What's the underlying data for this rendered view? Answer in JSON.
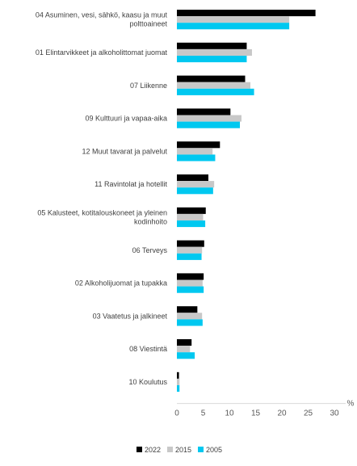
{
  "chart_data": {
    "type": "bar",
    "orientation": "horizontal",
    "categories": [
      [
        "04 Asuminen, vesi, sähkö, kaasu ja muut",
        "polttoaineet"
      ],
      [
        "01 Elintarvikkeet ja alkoholittomat juomat"
      ],
      [
        "07 Liikenne"
      ],
      [
        "09 Kulttuuri ja vapaa-aika"
      ],
      [
        "12 Muut tavarat ja palvelut"
      ],
      [
        "11 Ravintolat ja hotellit"
      ],
      [
        "05 Kalusteet, kotitalouskoneet ja yleinen",
        "kodinhoito"
      ],
      [
        "06 Terveys"
      ],
      [
        "02 Alkoholijuomat ja tupakka"
      ],
      [
        "03 Vaatetus ja jalkineet"
      ],
      [
        "08 Viestintä"
      ],
      [
        "10 Koulutus"
      ]
    ],
    "series": [
      {
        "name": "2022",
        "color": "#000000",
        "values": [
          26.4,
          13.3,
          13.0,
          10.2,
          8.2,
          6.0,
          5.5,
          5.2,
          5.1,
          3.9,
          2.8,
          0.4
        ]
      },
      {
        "name": "2015",
        "color": "#C8C8C8",
        "values": [
          21.4,
          14.3,
          14.0,
          12.3,
          6.8,
          7.1,
          5.0,
          4.8,
          4.9,
          4.8,
          2.5,
          0.5
        ]
      },
      {
        "name": "2005",
        "color": "#00C8F0",
        "values": [
          21.4,
          13.3,
          14.7,
          12.0,
          7.3,
          6.9,
          5.4,
          4.7,
          5.1,
          4.9,
          3.4,
          0.5
        ]
      }
    ],
    "xlim": [
      0,
      30
    ],
    "xticks": [
      0,
      5,
      10,
      15,
      20,
      25,
      30
    ],
    "unit_label": "%",
    "grid": false,
    "legend_position": "bottom"
  }
}
